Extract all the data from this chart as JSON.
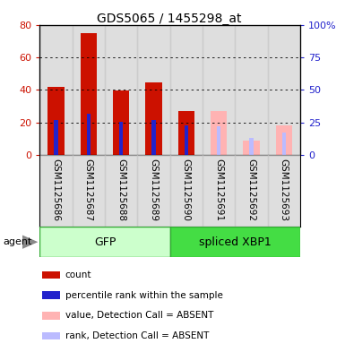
{
  "title": "GDS5065 / 1455298_at",
  "samples": [
    "GSM1125686",
    "GSM1125687",
    "GSM1125688",
    "GSM1125689",
    "GSM1125690",
    "GSM1125691",
    "GSM1125692",
    "GSM1125693"
  ],
  "count_values": [
    42,
    75,
    39.5,
    44.5,
    27,
    0,
    0,
    0
  ],
  "percentile_rank": [
    27,
    31.5,
    25.5,
    27,
    22.5,
    0,
    0,
    0
  ],
  "absent_value": [
    0,
    0,
    0,
    0,
    0,
    27,
    9,
    18
  ],
  "absent_rank": [
    0,
    0,
    0,
    0,
    0,
    22,
    13,
    17
  ],
  "color_count": "#cc1100",
  "color_rank": "#2222cc",
  "color_absent_value": "#ffb3b3",
  "color_absent_rank": "#bbbbff",
  "gfp_color_light": "#ccffcc",
  "gfp_color_dark": "#44dd44",
  "ylim": [
    0,
    80
  ],
  "y2lim": [
    0,
    100
  ],
  "yticks": [
    0,
    20,
    40,
    60,
    80
  ],
  "y2ticks": [
    0,
    25,
    50,
    75,
    100
  ],
  "y2ticklabels": [
    "0",
    "25",
    "50",
    "75",
    "100%"
  ],
  "bar_width": 0.5,
  "rank_bar_width": 0.12,
  "plot_bg": "#ffffff",
  "gray_col_color": "#c8c8c8"
}
